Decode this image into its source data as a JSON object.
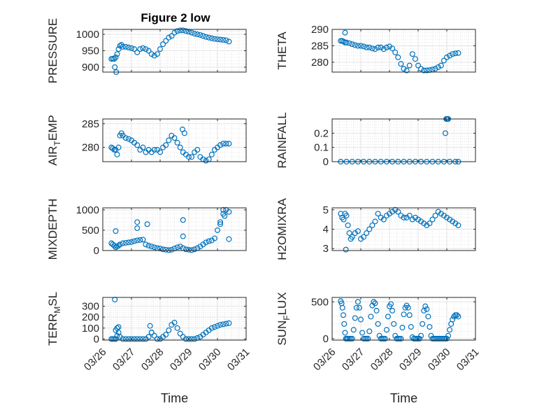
{
  "figure": {
    "title": "Figure 2 low"
  },
  "colors": {
    "marker": "#0072BD",
    "axis": "#262626",
    "grid": "#d9d9d9"
  },
  "chart_data": [
    {
      "type": "scatter",
      "title": "Figure 2 low",
      "ylabel": "PRESSURE",
      "ylabel_sub": "",
      "ylim": [
        885,
        1015
      ],
      "yticks": [
        900,
        950,
        1000
      ],
      "xlim": [
        0,
        5
      ],
      "xtick_labels": [
        "03/26",
        "03/27",
        "03/28",
        "03/29",
        "03/30",
        "03/31"
      ],
      "xlabel": "",
      "x": [
        0.3,
        0.35,
        0.4,
        0.45,
        0.5,
        0.55,
        0.6,
        0.65,
        0.7,
        0.8,
        0.9,
        1.0,
        1.1,
        1.2,
        1.3,
        1.4,
        1.5,
        1.6,
        1.7,
        1.8,
        1.9,
        2.0,
        2.1,
        2.2,
        2.3,
        2.4,
        2.5,
        2.6,
        2.7,
        2.8,
        2.9,
        3.0,
        3.1,
        3.2,
        3.3,
        3.4,
        3.5,
        3.6,
        3.7,
        3.8,
        3.9,
        4.0,
        4.1,
        4.2,
        4.3,
        4.4,
        0.47,
        0.42
      ],
      "y": [
        925,
        926,
        925,
        930,
        940,
        955,
        965,
        968,
        962,
        962,
        960,
        958,
        955,
        945,
        955,
        958,
        955,
        950,
        940,
        935,
        940,
        955,
        970,
        980,
        990,
        995,
        1005,
        1010,
        1012,
        1012,
        1010,
        1008,
        1005,
        1002,
        1000,
        998,
        995,
        992,
        990,
        988,
        986,
        985,
        984,
        983,
        982,
        978,
        885,
        900
      ]
    },
    {
      "type": "scatter",
      "title": "",
      "ylabel": "THETA",
      "ylabel_sub": "",
      "ylim": [
        277,
        290
      ],
      "yticks": [
        280,
        285,
        290
      ],
      "xlim": [
        0,
        5
      ],
      "xtick_labels": [
        "03/26",
        "03/27",
        "03/28",
        "03/29",
        "03/30",
        "03/31"
      ],
      "xlabel": "",
      "x": [
        0.3,
        0.35,
        0.4,
        0.45,
        0.5,
        0.6,
        0.7,
        0.8,
        0.9,
        1.0,
        1.1,
        1.2,
        1.3,
        1.4,
        1.5,
        1.6,
        1.7,
        1.8,
        1.9,
        2.0,
        2.1,
        2.2,
        2.3,
        2.4,
        2.5,
        2.6,
        2.7,
        2.8,
        2.9,
        3.0,
        3.1,
        3.2,
        3.3,
        3.4,
        3.5,
        3.6,
        3.7,
        3.8,
        3.9,
        4.0,
        4.1,
        4.2,
        4.3,
        4.4,
        0.45
      ],
      "y": [
        286.5,
        286.5,
        286.3,
        286.0,
        286.0,
        285.8,
        285.5,
        285.2,
        285.0,
        285.0,
        284.8,
        284.5,
        284.5,
        284.2,
        284.0,
        284.5,
        284.5,
        284.0,
        284.5,
        284.8,
        284.2,
        283.0,
        281.5,
        279.5,
        278.0,
        277.5,
        279.0,
        282.5,
        281.0,
        279.0,
        278.0,
        277.5,
        277.5,
        277.6,
        277.8,
        278.0,
        278.5,
        279.0,
        280.5,
        281.5,
        282.0,
        282.5,
        282.7,
        282.8,
        289.0
      ]
    },
    {
      "type": "scatter",
      "title": "",
      "ylabel": "AIR",
      "ylabel_sub": "T",
      "ylabel_suffix": "EMP",
      "ylim": [
        277,
        286
      ],
      "yticks": [
        280,
        285
      ],
      "xlim": [
        0,
        5
      ],
      "xtick_labels": [
        "03/26",
        "03/27",
        "03/28",
        "03/29",
        "03/30",
        "03/31"
      ],
      "xlabel": "",
      "x": [
        0.3,
        0.35,
        0.4,
        0.45,
        0.5,
        0.55,
        0.6,
        0.65,
        0.7,
        0.8,
        0.9,
        1.0,
        1.1,
        1.2,
        1.3,
        1.4,
        1.5,
        1.6,
        1.7,
        1.8,
        1.9,
        2.0,
        2.1,
        2.2,
        2.3,
        2.4,
        2.5,
        2.6,
        2.7,
        2.8,
        2.9,
        3.0,
        3.1,
        3.2,
        3.3,
        3.4,
        3.5,
        3.6,
        3.7,
        3.8,
        3.9,
        4.0,
        4.1,
        4.2,
        4.3,
        4.4,
        2.78,
        2.85
      ],
      "y": [
        280,
        279.8,
        279.5,
        279.5,
        278.5,
        280.0,
        282.5,
        283.0,
        282.5,
        282.0,
        281.8,
        281.5,
        281.0,
        280.5,
        279.5,
        280.0,
        279.0,
        279.5,
        279.0,
        279.5,
        279.5,
        279.0,
        280.0,
        280.5,
        281.5,
        282.5,
        282.0,
        281.0,
        280.0,
        279.0,
        278.5,
        278.0,
        278.0,
        279.0,
        279.5,
        278.0,
        277.5,
        277.2,
        277.5,
        278.5,
        279.5,
        280.0,
        280.5,
        280.8,
        280.8,
        280.8,
        283.8,
        283.0
      ]
    },
    {
      "type": "scatter",
      "title": "",
      "ylabel": "RAINFALL",
      "ylabel_sub": "",
      "ylim": [
        0,
        0.3
      ],
      "yticks": [
        0,
        0.1,
        0.2
      ],
      "xlim": [
        0,
        5
      ],
      "xtick_labels": [
        "03/26",
        "03/27",
        "03/28",
        "03/29",
        "03/30",
        "03/31"
      ],
      "xlabel": "",
      "x": [
        0.3,
        0.5,
        0.7,
        0.9,
        1.1,
        1.3,
        1.5,
        1.7,
        1.9,
        2.1,
        2.3,
        2.5,
        2.7,
        2.9,
        3.1,
        3.3,
        3.5,
        3.7,
        3.9,
        4.1,
        4.3,
        4.4,
        3.95,
        4.0,
        4.02,
        4.05,
        3.98
      ],
      "y": [
        0,
        0,
        0,
        0,
        0,
        0,
        0,
        0,
        0,
        0,
        0,
        0,
        0,
        0,
        0,
        0,
        0,
        0,
        0,
        0,
        0,
        0,
        0.2,
        0.3,
        0.3,
        0.3,
        0.3
      ]
    },
    {
      "type": "scatter",
      "title": "",
      "ylabel": "MIXDEPTH",
      "ylabel_sub": "",
      "ylim": [
        0,
        1050
      ],
      "yticks": [
        0,
        500,
        1000
      ],
      "xlim": [
        0,
        5
      ],
      "xtick_labels": [
        "03/26",
        "03/27",
        "03/28",
        "03/29",
        "03/30",
        "03/31"
      ],
      "xlabel": "",
      "x": [
        0.3,
        0.35,
        0.4,
        0.45,
        0.5,
        0.55,
        0.6,
        0.7,
        0.8,
        0.9,
        1.0,
        1.1,
        1.2,
        1.3,
        1.4,
        1.5,
        1.6,
        1.7,
        1.8,
        1.9,
        2.0,
        2.1,
        2.2,
        2.3,
        2.4,
        2.5,
        2.6,
        2.7,
        2.8,
        2.9,
        3.0,
        3.1,
        3.2,
        3.3,
        3.4,
        3.5,
        3.6,
        3.7,
        3.8,
        3.9,
        4.0,
        4.1,
        4.2,
        4.3,
        4.4,
        0.45,
        1.2,
        1.2,
        1.55,
        2.8,
        2.8,
        4.1,
        4.2,
        4.25,
        4.4
      ],
      "y": [
        180,
        150,
        120,
        80,
        100,
        120,
        150,
        180,
        190,
        200,
        210,
        230,
        250,
        260,
        270,
        150,
        120,
        100,
        80,
        60,
        50,
        30,
        20,
        10,
        20,
        50,
        80,
        100,
        60,
        30,
        20,
        10,
        30,
        60,
        100,
        150,
        200,
        230,
        250,
        300,
        500,
        700,
        900,
        1000,
        950,
        480,
        700,
        550,
        650,
        750,
        350,
        650,
        1000,
        850,
        280
      ]
    },
    {
      "type": "scatter",
      "title": "",
      "ylabel": "H2OMIXRA",
      "ylabel_sub": "",
      "ylim": [
        2.9,
        5.1
      ],
      "yticks": [
        3,
        4,
        5
      ],
      "xlim": [
        0,
        5
      ],
      "xtick_labels": [
        "03/26",
        "03/27",
        "03/28",
        "03/29",
        "03/30",
        "03/31"
      ],
      "xlabel": "",
      "x": [
        0.3,
        0.35,
        0.4,
        0.45,
        0.5,
        0.55,
        0.6,
        0.65,
        0.7,
        0.8,
        0.9,
        1.0,
        1.1,
        1.2,
        1.3,
        1.4,
        1.5,
        1.6,
        1.7,
        1.8,
        1.9,
        2.0,
        2.1,
        2.2,
        2.3,
        2.4,
        2.5,
        2.6,
        2.7,
        2.8,
        2.9,
        3.0,
        3.1,
        3.2,
        3.3,
        3.4,
        3.5,
        3.6,
        3.7,
        3.8,
        3.9,
        4.0,
        4.1,
        4.2,
        4.3,
        4.4,
        0.48
      ],
      "y": [
        4.8,
        4.6,
        4.5,
        4.8,
        4.7,
        4.2,
        3.8,
        3.5,
        3.6,
        3.8,
        3.9,
        3.5,
        3.6,
        3.8,
        4.0,
        4.2,
        4.4,
        4.8,
        4.6,
        4.5,
        4.7,
        4.8,
        4.9,
        5.0,
        4.9,
        4.7,
        4.6,
        4.6,
        4.7,
        4.5,
        4.6,
        4.5,
        4.4,
        4.3,
        4.2,
        4.3,
        4.5,
        4.7,
        4.9,
        4.8,
        4.7,
        4.6,
        4.5,
        4.4,
        4.3,
        4.2,
        2.95
      ]
    },
    {
      "type": "scatter",
      "title": "",
      "ylabel": "TERR",
      "ylabel_sub": "M",
      "ylabel_suffix": "SL",
      "ylim": [
        -10,
        380
      ],
      "yticks": [
        0,
        100,
        200,
        300
      ],
      "xlim": [
        0,
        5
      ],
      "xtick_labels": [
        "03/26",
        "03/27",
        "03/28",
        "03/29",
        "03/30",
        "03/31"
      ],
      "xlabel": "Time",
      "x": [
        0.3,
        0.35,
        0.4,
        0.45,
        0.5,
        0.55,
        0.6,
        0.7,
        0.8,
        0.9,
        1.0,
        1.1,
        1.2,
        1.3,
        1.4,
        1.5,
        1.6,
        1.7,
        1.8,
        1.9,
        2.0,
        2.1,
        2.2,
        2.3,
        2.4,
        2.5,
        2.6,
        2.7,
        2.8,
        2.9,
        3.0,
        3.1,
        3.2,
        3.3,
        3.4,
        3.5,
        3.6,
        3.7,
        3.8,
        3.9,
        4.0,
        4.1,
        4.2,
        4.3,
        4.4,
        0.42,
        0.45,
        0.5,
        0.55,
        1.65,
        1.7
      ],
      "y": [
        0,
        0,
        0,
        0,
        30,
        60,
        20,
        0,
        0,
        0,
        0,
        0,
        0,
        0,
        0,
        0,
        20,
        60,
        30,
        0,
        0,
        20,
        40,
        80,
        130,
        150,
        100,
        50,
        20,
        0,
        0,
        0,
        0,
        10,
        20,
        40,
        60,
        80,
        100,
        110,
        120,
        130,
        135,
        140,
        145,
        360,
        80,
        100,
        110,
        120,
        60
      ]
    },
    {
      "type": "scatter",
      "title": "",
      "ylabel": "SUN",
      "ylabel_sub": "F",
      "ylabel_suffix": "LUX",
      "ylim": [
        -20,
        560
      ],
      "yticks": [
        0,
        500
      ],
      "xlim": [
        0,
        5
      ],
      "xtick_labels": [
        "03/26",
        "03/27",
        "03/28",
        "03/29",
        "03/30",
        "03/31"
      ],
      "xlabel": "Time",
      "x": [
        0.3,
        0.33,
        0.36,
        0.39,
        0.42,
        0.45,
        0.48,
        0.51,
        0.55,
        0.6,
        0.65,
        0.7,
        0.75,
        0.8,
        0.85,
        0.9,
        0.95,
        1.0,
        1.05,
        1.1,
        1.15,
        1.2,
        1.25,
        1.3,
        1.35,
        1.4,
        1.45,
        1.5,
        1.55,
        1.6,
        1.65,
        1.7,
        1.75,
        1.8,
        1.85,
        1.9,
        1.95,
        2.0,
        2.05,
        2.1,
        2.15,
        2.2,
        2.25,
        2.3,
        2.35,
        2.4,
        2.45,
        2.5,
        2.55,
        2.6,
        2.65,
        2.7,
        2.75,
        2.8,
        2.85,
        2.9,
        2.95,
        3.0,
        3.05,
        3.1,
        3.15,
        3.2,
        3.25,
        3.3,
        3.35,
        3.4,
        3.45,
        3.5,
        3.55,
        3.6,
        3.65,
        3.7,
        3.75,
        3.8,
        3.85,
        3.9,
        3.95,
        4.0,
        4.05,
        4.1,
        4.15,
        4.2,
        4.25,
        4.3,
        4.35,
        4.4
      ],
      "y": [
        510,
        480,
        420,
        320,
        200,
        80,
        0,
        0,
        0,
        0,
        0,
        0,
        120,
        280,
        420,
        500,
        420,
        260,
        80,
        0,
        0,
        0,
        0,
        100,
        300,
        450,
        500,
        480,
        380,
        200,
        40,
        0,
        0,
        0,
        0,
        120,
        300,
        440,
        470,
        380,
        200,
        40,
        0,
        0,
        0,
        0,
        150,
        330,
        420,
        450,
        420,
        320,
        160,
        20,
        0,
        0,
        0,
        0,
        0,
        40,
        200,
        380,
        440,
        400,
        300,
        160,
        40,
        0,
        0,
        0,
        0,
        0,
        0,
        0,
        0,
        0,
        0,
        0,
        40,
        120,
        200,
        260,
        300,
        320,
        320,
        300
      ]
    }
  ]
}
